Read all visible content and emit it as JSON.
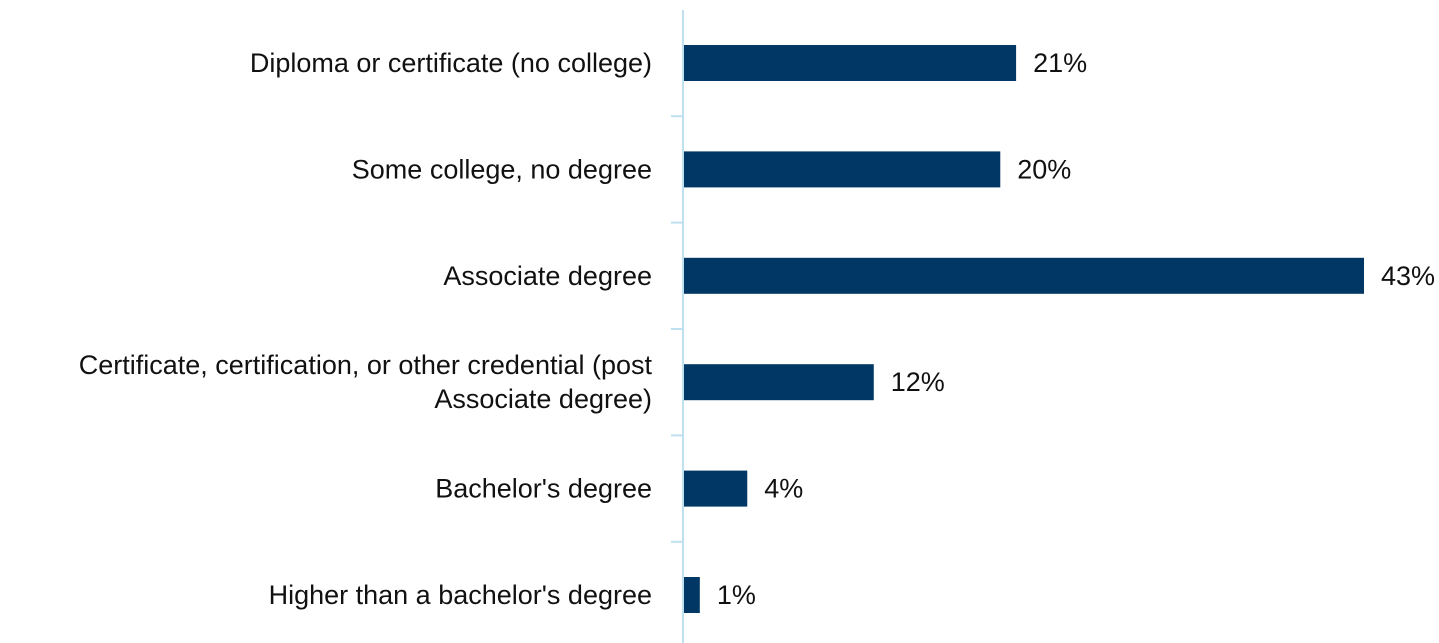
{
  "chart_data": {
    "type": "bar",
    "orientation": "horizontal",
    "categories": [
      "Diploma or certificate (no college)",
      "Some college, no degree",
      "Associate degree",
      "Certificate, certification, or other credential (post Associate degree)",
      "Bachelor's degree",
      "Higher than a bachelor's degree"
    ],
    "category_lines": [
      [
        "Diploma or certificate (no college)"
      ],
      [
        "Some college, no degree"
      ],
      [
        "Associate degree"
      ],
      [
        "Certificate, certification, or other credential (post",
        "Associate degree)"
      ],
      [
        "Bachelor's degree"
      ],
      [
        "Higher than a bachelor's degree"
      ]
    ],
    "values": [
      21,
      20,
      43,
      12,
      4,
      1
    ],
    "value_labels": [
      "21%",
      "20%",
      "43%",
      "12%",
      "4%",
      "1%"
    ],
    "unit": "%",
    "title": "",
    "xlabel": "",
    "ylabel": "",
    "xlim": [
      0,
      43
    ],
    "grid": false,
    "legend": "none",
    "colors": {
      "bar": "#003764",
      "axis": "#bfe0ef",
      "text": "#111111"
    }
  }
}
